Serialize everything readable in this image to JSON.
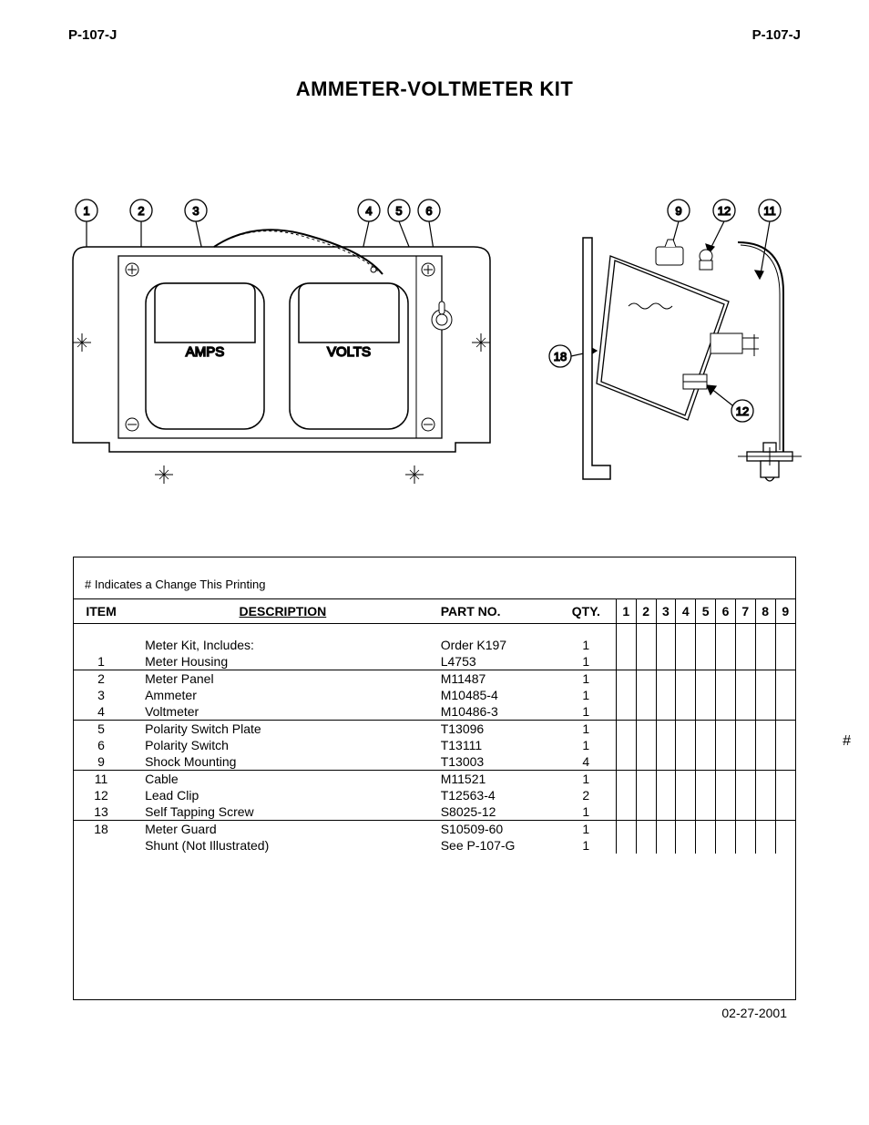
{
  "header": {
    "left": "P-107-J",
    "right": "P-107-J"
  },
  "title": "AMMETER-VOLTMETER KIT",
  "diagram": {
    "front_callouts": [
      "1",
      "2",
      "3",
      "4",
      "5",
      "6"
    ],
    "side_callouts": [
      "9",
      "12",
      "11",
      "18",
      "12"
    ],
    "amps_label": "AMPS",
    "volts_label": "VOLTS"
  },
  "change_note": "# Indicates a Change This Printing",
  "table": {
    "headers": {
      "item": "ITEM",
      "description": "DESCRIPTION",
      "part_no": "PART NO.",
      "qty": "QTY.",
      "cols": [
        "1",
        "2",
        "3",
        "4",
        "5",
        "6",
        "7",
        "8",
        "9"
      ]
    },
    "groups": [
      [
        {
          "item": "",
          "desc": "Meter Kit, Includes:",
          "part": "Order K197",
          "qty": "1"
        },
        {
          "item": "1",
          "desc": "Meter Housing",
          "part": "L4753",
          "qty": "1"
        }
      ],
      [
        {
          "item": "2",
          "desc": "Meter Panel",
          "part": "M11487",
          "qty": "1"
        },
        {
          "item": "3",
          "desc": "Ammeter",
          "part": "M10485-4",
          "qty": "1"
        },
        {
          "item": "4",
          "desc": "Voltmeter",
          "part": "M10486-3",
          "qty": "1"
        }
      ],
      [
        {
          "item": "5",
          "desc": "Polarity Switch Plate",
          "part": "T13096",
          "qty": "1"
        },
        {
          "item": "6",
          "desc": "Polarity Switch",
          "part": "T13111",
          "qty": "1"
        },
        {
          "item": "9",
          "desc": "Shock Mounting",
          "part": "T13003",
          "qty": "4"
        }
      ],
      [
        {
          "item": "11",
          "desc": "Cable",
          "part": "M11521",
          "qty": "1"
        },
        {
          "item": "12",
          "desc": "Lead Clip",
          "part": "T12563-4",
          "qty": "2"
        },
        {
          "item": "13",
          "desc": "Self Tapping Screw",
          "part": "S8025-12",
          "qty": "1"
        }
      ],
      [
        {
          "item": "18",
          "desc": "Meter Guard",
          "part": "S10509-60",
          "qty": "1"
        },
        {
          "item": "",
          "desc": "Shunt (Not Illustrated)",
          "part": "See P-107-G",
          "qty": "1"
        }
      ]
    ]
  },
  "side_hash": "#",
  "date": "02-27-2001"
}
